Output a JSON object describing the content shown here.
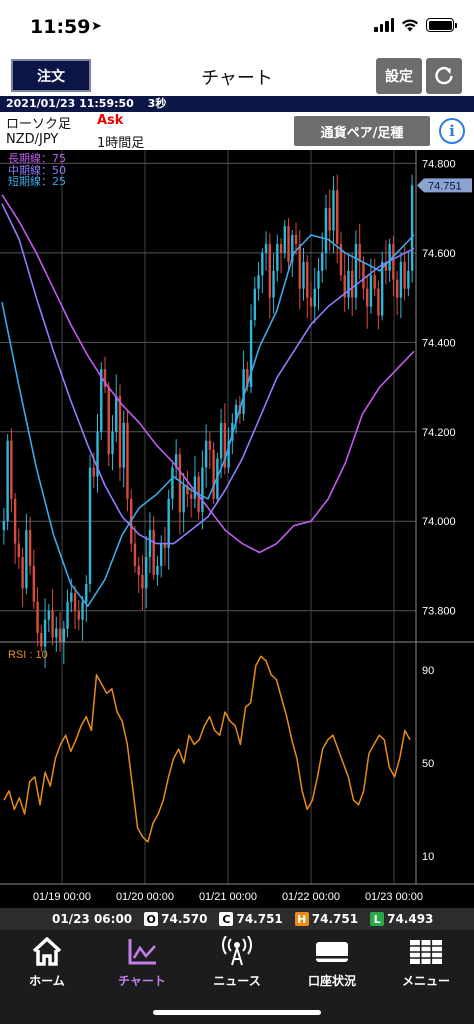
{
  "status_bar": {
    "time": "11:59",
    "location_icon": "location-arrow-icon"
  },
  "header": {
    "order_label": "注文",
    "title": "チャート",
    "settings_label": "設定",
    "refresh_icon": "refresh-icon"
  },
  "info_bar": {
    "datetime": "2021/01/23 11:59:50",
    "interval": "3秒"
  },
  "chart_info": {
    "chart_type": "ローソク足",
    "price_type": "Ask",
    "pair": "NZD/JPY",
    "timeframe": "1時間足",
    "pair_button": "通貨ペア/足種",
    "info_icon": "info-icon"
  },
  "legend": {
    "long": "長期線：75",
    "mid": "中期線：50",
    "short": "短期線：25"
  },
  "colors": {
    "long": "#c05cf0",
    "mid": "#8e7cff",
    "short": "#3ca9e8",
    "up": "#2fb7d8",
    "down": "#d94c3d",
    "rsi": "#e88c1a",
    "current": "#8ba3cf"
  },
  "rsi": {
    "label": "RSI : 10"
  },
  "chart_data": {
    "type": "candlestick",
    "series": [
      {
        "name": "長期線：75"
      },
      {
        "name": "中期線：50"
      },
      {
        "name": "短期線：25"
      }
    ],
    "x_ticks": [
      "01/19 00:00",
      "01/20 00:00",
      "01/21 00:00",
      "01/22 00:00",
      "01/23 00:00"
    ],
    "y_ticks": [
      "74.800",
      "74.600",
      "74.400",
      "74.200",
      "74.000",
      "73.800"
    ],
    "ylim": [
      73.73,
      74.83
    ],
    "current_price": "74.751",
    "rsi_ticks": [
      "90",
      "50",
      "10"
    ],
    "rsi_ylim": [
      0,
      100
    ],
    "closes": [
      74.0,
      74.18,
      74.05,
      73.95,
      73.92,
      73.85,
      73.98,
      73.9,
      73.82,
      73.75,
      73.72,
      73.78,
      73.8,
      73.74,
      73.76,
      73.73,
      73.76,
      73.82,
      73.84,
      73.8,
      73.78,
      73.82,
      73.86,
      74.12,
      74.1,
      74.2,
      74.34,
      74.3,
      74.15,
      74.2,
      74.28,
      74.12,
      74.22,
      74.05,
      73.95,
      73.9,
      73.88,
      73.85,
      73.92,
      73.98,
      73.88,
      73.9,
      73.95,
      73.94,
      74.05,
      74.12,
      74.15,
      74.02,
      74.08,
      74.06,
      74.05,
      74.1,
      74.02,
      74.12,
      74.18,
      74.16,
      74.05,
      74.14,
      74.22,
      74.12,
      74.18,
      74.22,
      74.26,
      74.24,
      74.34,
      74.3,
      74.45,
      74.52,
      74.55,
      74.6,
      74.62,
      74.5,
      74.56,
      74.62,
      74.6,
      74.66,
      74.58,
      74.64,
      74.62,
      74.52,
      74.58,
      74.5,
      74.48,
      74.52,
      74.56,
      74.6,
      74.7,
      74.65,
      74.74,
      74.62,
      74.55,
      74.5,
      74.56,
      74.5,
      74.62,
      74.58,
      74.52,
      74.48,
      74.55,
      74.52,
      74.46,
      74.58,
      74.56,
      74.62,
      74.54,
      74.5,
      74.58,
      74.52,
      74.56,
      74.751
    ],
    "ma_long": [
      74.73,
      74.67,
      74.6,
      74.52,
      74.44,
      74.37,
      74.31,
      74.26,
      74.22,
      74.17,
      74.13,
      74.08,
      74.03,
      73.98,
      73.95,
      73.93,
      73.95,
      73.99,
      74.0,
      74.05,
      74.13,
      74.24,
      74.3,
      74.34,
      74.38
    ],
    "ma_mid": [
      74.71,
      74.63,
      74.5,
      74.38,
      74.27,
      74.17,
      74.08,
      74.01,
      73.97,
      73.95,
      73.95,
      73.98,
      74.01,
      74.07,
      74.14,
      74.23,
      74.32,
      74.38,
      74.44,
      74.48,
      74.51,
      74.54,
      74.57,
      74.59,
      74.61
    ],
    "ma_short": [
      74.49,
      74.3,
      74.12,
      73.97,
      73.86,
      73.81,
      73.87,
      73.97,
      74.03,
      74.06,
      74.1,
      74.07,
      74.05,
      74.14,
      74.27,
      74.39,
      74.47,
      74.6,
      74.64,
      74.63,
      74.6,
      74.58,
      74.56,
      74.6,
      74.64
    ],
    "rsi_values": [
      34,
      38,
      30,
      35,
      28,
      42,
      44,
      32,
      46,
      40,
      52,
      58,
      62,
      55,
      60,
      66,
      70,
      64,
      88,
      84,
      80,
      82,
      72,
      68,
      58,
      40,
      22,
      18,
      16,
      24,
      28,
      34,
      44,
      52,
      56,
      50,
      62,
      58,
      60,
      66,
      70,
      64,
      62,
      72,
      68,
      66,
      58,
      74,
      76,
      92,
      96,
      94,
      88,
      86,
      78,
      70,
      60,
      52,
      38,
      30,
      34,
      44,
      56,
      60,
      62,
      56,
      50,
      44,
      34,
      32,
      38,
      54,
      58,
      62,
      60,
      48,
      44,
      52,
      64,
      60
    ],
    "ohlc": {
      "datetime": "01/23 06:00",
      "open": "74.570",
      "close": "74.751",
      "high": "74.751",
      "low": "74.493"
    }
  },
  "tabs": [
    {
      "label": "ホーム",
      "icon": "home-icon"
    },
    {
      "label": "チャート",
      "icon": "chart-icon"
    },
    {
      "label": "ニュース",
      "icon": "broadcast-icon"
    },
    {
      "label": "口座状況",
      "icon": "card-icon"
    },
    {
      "label": "メニュー",
      "icon": "grid-icon"
    }
  ]
}
